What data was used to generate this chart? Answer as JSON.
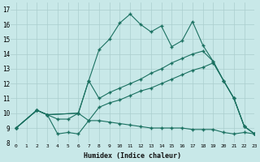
{
  "xlabel": "Humidex (Indice chaleur)",
  "xlim": [
    -0.5,
    23
  ],
  "ylim": [
    8,
    17.5
  ],
  "xticks": [
    0,
    1,
    2,
    3,
    4,
    5,
    6,
    7,
    8,
    9,
    10,
    11,
    12,
    13,
    14,
    15,
    16,
    17,
    18,
    19,
    20,
    21,
    22,
    23
  ],
  "yticks": [
    8,
    9,
    10,
    11,
    12,
    13,
    14,
    15,
    16,
    17
  ],
  "bg_color": "#c8e8e8",
  "line_color": "#1a7060",
  "grid_color": "#aacece",
  "series": [
    {
      "x": [
        0,
        2,
        3,
        4,
        5,
        6,
        7,
        8,
        9,
        10,
        11,
        12,
        13,
        14,
        15,
        16,
        17,
        18,
        19,
        20,
        21,
        22,
        23
      ],
      "y": [
        9.0,
        10.2,
        9.9,
        8.6,
        8.7,
        8.6,
        9.5,
        9.5,
        9.4,
        9.3,
        9.2,
        9.1,
        9.0,
        9.0,
        9.0,
        9.0,
        8.9,
        8.9,
        8.9,
        8.7,
        8.6,
        8.7,
        8.6
      ]
    },
    {
      "x": [
        0,
        2,
        3,
        6,
        7,
        8,
        9,
        10,
        11,
        12,
        13,
        14,
        15,
        16,
        17,
        18,
        19,
        20,
        21,
        22,
        23
      ],
      "y": [
        9.0,
        10.2,
        9.9,
        10.0,
        9.5,
        10.4,
        10.7,
        10.9,
        11.2,
        11.5,
        11.7,
        12.0,
        12.3,
        12.6,
        12.9,
        13.1,
        13.4,
        12.2,
        11.0,
        9.1,
        8.6
      ]
    },
    {
      "x": [
        0,
        2,
        3,
        6,
        7,
        8,
        9,
        10,
        11,
        12,
        13,
        14,
        15,
        16,
        17,
        18,
        19,
        20,
        21,
        22,
        23
      ],
      "y": [
        9.0,
        10.2,
        9.9,
        10.0,
        12.2,
        11.0,
        11.4,
        11.7,
        12.0,
        12.3,
        12.7,
        13.0,
        13.4,
        13.7,
        14.0,
        14.2,
        13.5,
        12.2,
        11.0,
        9.1,
        8.6
      ]
    },
    {
      "x": [
        0,
        2,
        3,
        4,
        5,
        6,
        7,
        8,
        9,
        10,
        11,
        12,
        13,
        14,
        15,
        16,
        17,
        18,
        19,
        20,
        21,
        22,
        23
      ],
      "y": [
        9.0,
        10.2,
        9.9,
        9.6,
        9.6,
        10.0,
        12.2,
        14.3,
        15.0,
        16.1,
        16.7,
        16.0,
        15.5,
        15.9,
        14.5,
        14.9,
        16.2,
        14.6,
        13.5,
        12.2,
        11.0,
        9.1,
        8.6
      ]
    }
  ]
}
